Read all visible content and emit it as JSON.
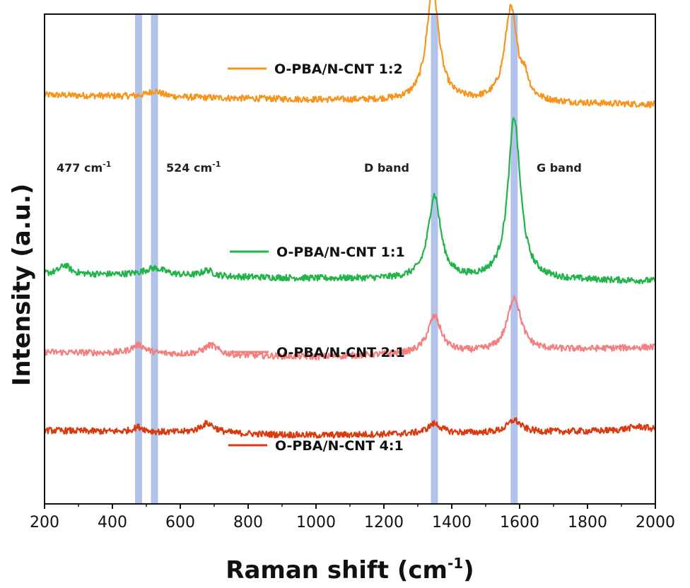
{
  "chart_data": {
    "type": "line",
    "xlabel": "Raman shift (cm",
    "xlabel_sup": "-1",
    "xlabel_close": ")",
    "ylabel": "Intensity (a.u.)",
    "xlim": [
      200,
      2000
    ],
    "xticks": [
      200,
      400,
      600,
      800,
      1000,
      1200,
      1400,
      1600,
      1800,
      2000
    ],
    "ylim": [
      0,
      100
    ],
    "highlight_bands": [
      {
        "center": 477,
        "label": "477 cm",
        "sup": "-1"
      },
      {
        "center": 524,
        "label": "524 cm",
        "sup": "-1"
      },
      {
        "center": 1349,
        "label": "D band",
        "sup": ""
      },
      {
        "center": 1584,
        "label": "G band",
        "sup": ""
      }
    ],
    "series": [
      {
        "name": "O-PBA/N-CNT 1:2",
        "color": "#f7941d",
        "baseline": [
          [
            200,
            83.5
          ],
          [
            1000,
            82.5
          ],
          [
            2000,
            81.5
          ]
        ],
        "peaks": [
          [
            1344,
            23.0,
            22
          ],
          [
            1574,
            19.0,
            22
          ],
          [
            1615,
            3.5,
            14
          ],
          [
            524,
            1.2,
            25
          ]
        ]
      },
      {
        "name": "O-PBA/N-CNT 1:1",
        "color": "#22b34a",
        "baseline": [
          [
            200,
            47.0
          ],
          [
            1000,
            46.0
          ],
          [
            2000,
            45.5
          ]
        ],
        "peaks": [
          [
            1349,
            17.0,
            22
          ],
          [
            1584,
            33.0,
            22
          ],
          [
            260,
            1.8,
            18
          ],
          [
            524,
            1.5,
            40
          ],
          [
            680,
            1.2,
            20
          ]
        ]
      },
      {
        "name": "O-PBA/N-CNT 2:1",
        "color": "#f47f7f",
        "baseline": [
          [
            200,
            31.0
          ],
          [
            1000,
            30.0
          ],
          [
            2000,
            32.0
          ]
        ],
        "peaks": [
          [
            1349,
            7.5,
            24
          ],
          [
            1584,
            11.0,
            24
          ],
          [
            477,
            1.8,
            25
          ],
          [
            690,
            2.0,
            25
          ]
        ]
      },
      {
        "name": "O-PBA/N-CNT 4:1",
        "color": "#d93a10",
        "baseline": [
          [
            200,
            15.0
          ],
          [
            1000,
            14.0
          ],
          [
            2000,
            15.0
          ]
        ],
        "peaks": [
          [
            1349,
            2.0,
            24
          ],
          [
            1584,
            2.5,
            24
          ],
          [
            477,
            1.0,
            20
          ],
          [
            680,
            2.0,
            28
          ],
          [
            1950,
            0.8,
            40
          ]
        ]
      }
    ]
  }
}
